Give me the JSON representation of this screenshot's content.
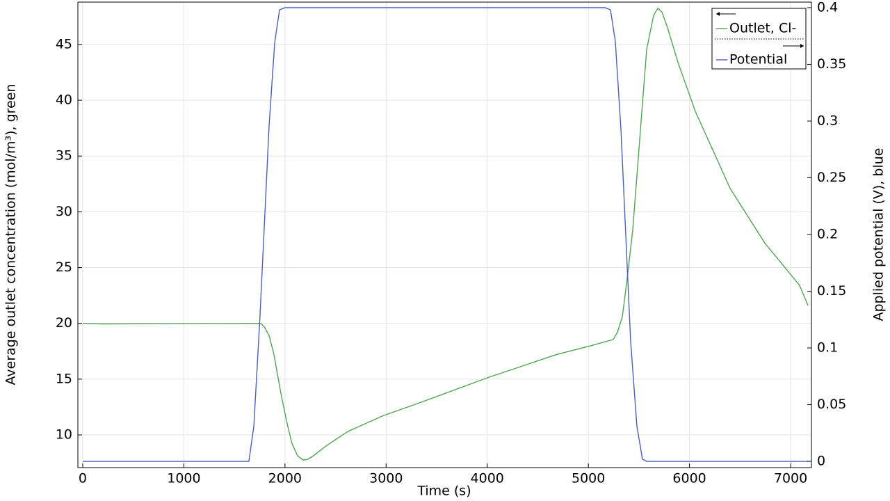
{
  "chart_data": {
    "type": "line",
    "xlabel": "Time (s)",
    "ylabel": "Average outlet concentration (mol/m³), green",
    "y2label": "Applied potential (V), blue",
    "xlim": [
      -48,
      7206
    ],
    "ylim": [
      7.07,
      48.8
    ],
    "y2lim": [
      -0.0055,
      0.4049
    ],
    "xticks": [
      0,
      1000,
      2000,
      3000,
      4000,
      5000,
      6000,
      7000
    ],
    "yticks": [
      10,
      15,
      20,
      25,
      30,
      35,
      40,
      45
    ],
    "y2ticks": [
      0,
      0.05,
      0.1,
      0.15,
      0.2,
      0.25,
      0.3,
      0.35,
      0.4
    ],
    "grid": true,
    "legend": "upper right",
    "series": [
      {
        "name": "Outlet, Cl-",
        "color": "#4fa64f",
        "axis": "y",
        "x": [
          0,
          200,
          1000,
          1760,
          1795,
          1843,
          1891,
          1953,
          2015,
          2070,
          2125,
          2180,
          2221,
          2276,
          2414,
          2620,
          2964,
          3307,
          3995,
          4683,
          5026,
          5246,
          5288,
          5336,
          5384,
          5439,
          5508,
          5577,
          5645,
          5687,
          5728,
          5783,
          5886,
          6058,
          6402,
          6745,
          7089,
          7172
        ],
        "values": [
          20.0,
          19.95,
          19.98,
          20.0,
          19.7,
          18.9,
          17.2,
          14.05,
          11.25,
          9.2,
          8.13,
          7.75,
          7.8,
          8.1,
          9.06,
          10.3,
          11.7,
          12.8,
          15.1,
          17.2,
          18.0,
          18.55,
          19.2,
          20.6,
          24.0,
          28.4,
          36.5,
          44.6,
          47.6,
          48.25,
          47.9,
          46.5,
          43.4,
          39.0,
          32.1,
          27.2,
          23.4,
          21.6
        ]
      },
      {
        "name": "Potential",
        "color": "#4a5fc1",
        "axis": "y2",
        "x": [
          0,
          1643,
          1692,
          1753,
          1843,
          1898,
          1946,
          2001,
          5164,
          5219,
          5267,
          5322,
          5418,
          5480,
          5535,
          5577,
          7172
        ],
        "values": [
          0,
          0,
          0.031,
          0.128,
          0.296,
          0.369,
          0.398,
          0.4,
          0.4,
          0.398,
          0.37,
          0.293,
          0.106,
          0.031,
          0.002,
          0,
          0
        ]
      }
    ]
  }
}
